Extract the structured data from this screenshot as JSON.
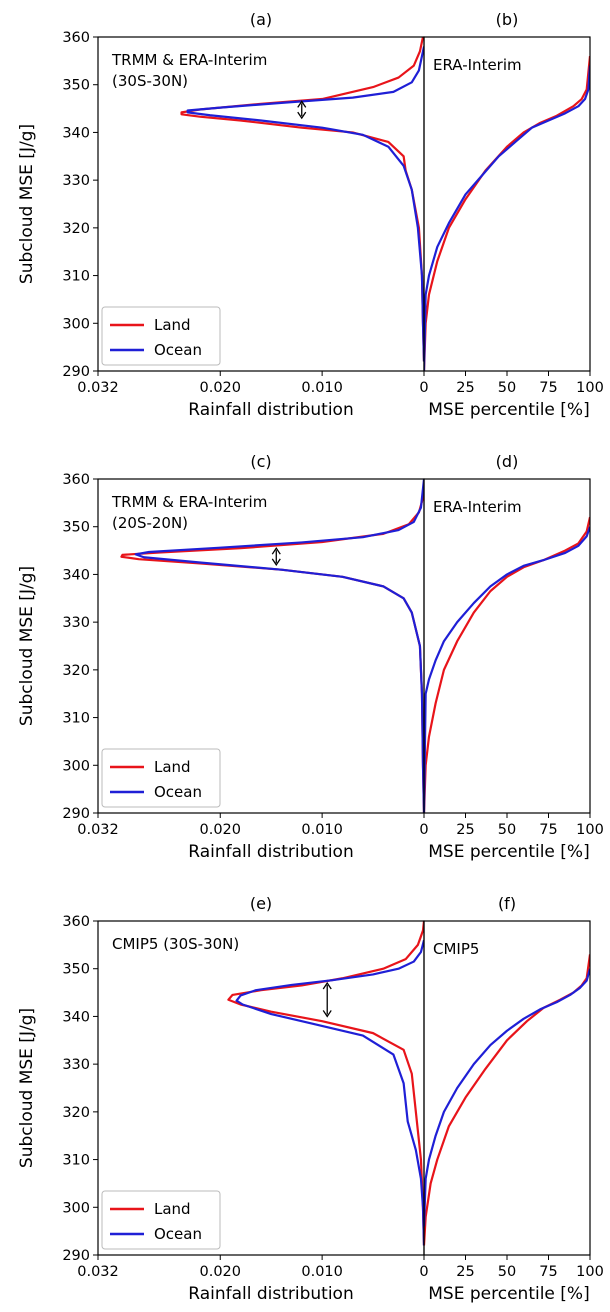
{
  "figure": {
    "rows": [
      {
        "left_panel_letter": "(a)",
        "right_panel_letter": "(b)",
        "left_annotation": [
          "TRMM & ERA-Interim",
          "(30S-30N)"
        ],
        "right_annotation": "ERA-Interim",
        "show_xticks_left": true
      },
      {
        "left_panel_letter": "(c)",
        "right_panel_letter": "(d)",
        "left_annotation": [
          "TRMM & ERA-Interim",
          "(20S-20N)"
        ],
        "right_annotation": "ERA-Interim"
      },
      {
        "left_panel_letter": "(e)",
        "right_panel_letter": "(f)",
        "left_annotation": [
          "CMIP5 (30S-30N)"
        ],
        "right_annotation": "CMIP5"
      }
    ],
    "left_xlabel": "Rainfall distribution",
    "right_xlabel": "MSE percentile [%]",
    "ylabel": "Subcloud MSE [J/g]",
    "left_xticks": [
      "0.032",
      "0.020",
      "0.010",
      "0"
    ],
    "right_xticks": [
      "0",
      "25",
      "50",
      "75",
      "100"
    ],
    "yticks": [
      "290",
      "300",
      "310",
      "320",
      "330",
      "340",
      "350",
      "360"
    ],
    "legend": [
      "Land",
      "Ocean"
    ],
    "colors": {
      "land": "#e8141a",
      "ocean": "#1f1fd6",
      "axis": "#000000"
    }
  },
  "chart_data": [
    {
      "panel": "(a)",
      "type": "line",
      "title": "",
      "xlabel": "Rainfall distribution",
      "ylabel": "Subcloud MSE [J/g]",
      "xlim": [
        0.032,
        0
      ],
      "ylim": [
        290,
        360
      ],
      "legend_position": "lower-left",
      "series": [
        {
          "name": "Land",
          "points": [
            [
              0,
              292
            ],
            [
              0.0001,
              300
            ],
            [
              0.0002,
              310
            ],
            [
              0.0005,
              320
            ],
            [
              0.0012,
              328
            ],
            [
              0.0018,
              332
            ],
            [
              0.002,
              335
            ],
            [
              0.0035,
              338
            ],
            [
              0.007,
              340
            ],
            [
              0.012,
              341
            ],
            [
              0.018,
              342.5
            ],
            [
              0.022,
              343.3
            ],
            [
              0.0238,
              343.8
            ],
            [
              0.0238,
              344.2
            ],
            [
              0.022,
              344.8
            ],
            [
              0.016,
              346
            ],
            [
              0.01,
              347
            ],
            [
              0.005,
              349.5
            ],
            [
              0.0025,
              351.5
            ],
            [
              0.001,
              354
            ],
            [
              0.0004,
              357
            ],
            [
              0.0001,
              360
            ]
          ]
        },
        {
          "name": "Ocean",
          "points": [
            [
              0,
              292
            ],
            [
              0.0001,
              300
            ],
            [
              0.0002,
              310
            ],
            [
              0.0006,
              320
            ],
            [
              0.0012,
              328
            ],
            [
              0.002,
              333
            ],
            [
              0.0035,
              337
            ],
            [
              0.006,
              339.5
            ],
            [
              0.01,
              341
            ],
            [
              0.016,
              342.5
            ],
            [
              0.021,
              343.6
            ],
            [
              0.0232,
              344.2
            ],
            [
              0.0232,
              344.6
            ],
            [
              0.02,
              345.2
            ],
            [
              0.014,
              346.2
            ],
            [
              0.007,
              347.3
            ],
            [
              0.003,
              348.5
            ],
            [
              0.0012,
              350.5
            ],
            [
              0.0005,
              353
            ],
            [
              0.0002,
              356
            ],
            [
              0,
              358
            ]
          ]
        }
      ],
      "annotation": "double-headed arrow between peaks at x 0.012, y 343–346.5"
    },
    {
      "panel": "(b)",
      "type": "line",
      "xlabel": "MSE percentile [%]",
      "xlim": [
        0,
        100
      ],
      "ylim": [
        290,
        360
      ],
      "series": [
        {
          "name": "Land",
          "points": [
            [
              0,
              290
            ],
            [
              1,
              300
            ],
            [
              3,
              306
            ],
            [
              8,
              313
            ],
            [
              15,
              320
            ],
            [
              25,
              326
            ],
            [
              37,
              332
            ],
            [
              50,
              337
            ],
            [
              60,
              340
            ],
            [
              70,
              342
            ],
            [
              80,
              343.5
            ],
            [
              90,
              345.5
            ],
            [
              95,
              347
            ],
            [
              98,
              349
            ],
            [
              100,
              356
            ]
          ]
        },
        {
          "name": "Ocean",
          "points": [
            [
              0,
              290
            ],
            [
              1,
              306
            ],
            [
              3,
              310
            ],
            [
              8,
              316
            ],
            [
              15,
              321
            ],
            [
              25,
              327
            ],
            [
              35,
              331
            ],
            [
              45,
              335
            ],
            [
              55,
              338
            ],
            [
              65,
              341
            ],
            [
              75,
              342.5
            ],
            [
              85,
              344
            ],
            [
              93,
              345.5
            ],
            [
              97,
              347
            ],
            [
              99,
              349
            ],
            [
              100,
              354
            ]
          ]
        }
      ]
    },
    {
      "panel": "(c)",
      "type": "line",
      "xlabel": "Rainfall distribution",
      "ylabel": "Subcloud MSE [J/g]",
      "xlim": [
        0.032,
        0
      ],
      "ylim": [
        290,
        360
      ],
      "legend_position": "lower-left",
      "series": [
        {
          "name": "Land",
          "points": [
            [
              0,
              290
            ],
            [
              0.0001,
              300
            ],
            [
              0.0002,
              315
            ],
            [
              0.0004,
              325
            ],
            [
              0.0012,
              332
            ],
            [
              0.002,
              335
            ],
            [
              0.004,
              337.5
            ],
            [
              0.008,
              339.5
            ],
            [
              0.014,
              341
            ],
            [
              0.022,
              342.3
            ],
            [
              0.028,
              343.2
            ],
            [
              0.0297,
              343.7
            ],
            [
              0.0296,
              344.1
            ],
            [
              0.026,
              344.6
            ],
            [
              0.018,
              345.5
            ],
            [
              0.01,
              346.8
            ],
            [
              0.004,
              348.5
            ],
            [
              0.0015,
              350.5
            ],
            [
              0.0005,
              353
            ],
            [
              0.0001,
              356
            ],
            [
              0,
              358
            ]
          ]
        },
        {
          "name": "Ocean",
          "points": [
            [
              0,
              290
            ],
            [
              0.0001,
              300
            ],
            [
              0.0002,
              315
            ],
            [
              0.0004,
              325
            ],
            [
              0.0012,
              332
            ],
            [
              0.002,
              335
            ],
            [
              0.004,
              337.5
            ],
            [
              0.008,
              339.5
            ],
            [
              0.014,
              341
            ],
            [
              0.022,
              342.5
            ],
            [
              0.0275,
              343.6
            ],
            [
              0.0283,
              344.2
            ],
            [
              0.027,
              344.7
            ],
            [
              0.02,
              345.6
            ],
            [
              0.012,
              346.7
            ],
            [
              0.006,
              347.8
            ],
            [
              0.0025,
              349.3
            ],
            [
              0.001,
              351
            ],
            [
              0.0003,
              354
            ],
            [
              0,
              360
            ]
          ]
        }
      ],
      "annotation": "double-headed arrow between peaks at x 0.0145, y 342–345.5"
    },
    {
      "panel": "(d)",
      "type": "line",
      "xlabel": "MSE percentile [%]",
      "xlim": [
        0,
        100
      ],
      "ylim": [
        290,
        360
      ],
      "series": [
        {
          "name": "Land",
          "points": [
            [
              0,
              290
            ],
            [
              1,
              300
            ],
            [
              3,
              306
            ],
            [
              7,
              313
            ],
            [
              12,
              320
            ],
            [
              20,
              326
            ],
            [
              30,
              332
            ],
            [
              40,
              336.5
            ],
            [
              50,
              339.5
            ],
            [
              60,
              341.5
            ],
            [
              72,
              343
            ],
            [
              85,
              345
            ],
            [
              93,
              346.5
            ],
            [
              98,
              349
            ],
            [
              100,
              352
            ]
          ]
        },
        {
          "name": "Ocean",
          "points": [
            [
              0,
              290
            ],
            [
              1,
              315
            ],
            [
              3,
              318
            ],
            [
              7,
              322
            ],
            [
              12,
              326
            ],
            [
              20,
              330
            ],
            [
              30,
              334
            ],
            [
              40,
              337.5
            ],
            [
              50,
              340
            ],
            [
              60,
              341.8
            ],
            [
              72,
              343
            ],
            [
              85,
              344.5
            ],
            [
              93,
              346
            ],
            [
              98,
              348
            ],
            [
              100,
              350
            ]
          ]
        }
      ]
    },
    {
      "panel": "(e)",
      "type": "line",
      "xlabel": "Rainfall distribution",
      "ylabel": "Subcloud MSE [J/g]",
      "xlim": [
        0.032,
        0
      ],
      "ylim": [
        290,
        360
      ],
      "legend_position": "lower-left",
      "series": [
        {
          "name": "Land",
          "points": [
            [
              0,
              292
            ],
            [
              0.0001,
              300
            ],
            [
              0.0003,
              310
            ],
            [
              0.0008,
              320
            ],
            [
              0.0012,
              328
            ],
            [
              0.002,
              333
            ],
            [
              0.005,
              336.5
            ],
            [
              0.01,
              339
            ],
            [
              0.015,
              341
            ],
            [
              0.018,
              342.5
            ],
            [
              0.0192,
              343.5
            ],
            [
              0.0188,
              344.5
            ],
            [
              0.016,
              345.5
            ],
            [
              0.012,
              346.5
            ],
            [
              0.008,
              348
            ],
            [
              0.004,
              350
            ],
            [
              0.0018,
              352
            ],
            [
              0.0006,
              355
            ],
            [
              0.0001,
              358
            ],
            [
              0,
              360
            ]
          ]
        },
        {
          "name": "Ocean",
          "points": [
            [
              0,
              292
            ],
            [
              0.0001,
              300
            ],
            [
              0.0003,
              306
            ],
            [
              0.0008,
              312
            ],
            [
              0.0016,
              318
            ],
            [
              0.002,
              326
            ],
            [
              0.003,
              332
            ],
            [
              0.006,
              336
            ],
            [
              0.011,
              338.5
            ],
            [
              0.015,
              340.5
            ],
            [
              0.0178,
              342.5
            ],
            [
              0.0184,
              343.3
            ],
            [
              0.018,
              344.4
            ],
            [
              0.0165,
              345.5
            ],
            [
              0.013,
              346.6
            ],
            [
              0.009,
              347.6
            ],
            [
              0.005,
              348.8
            ],
            [
              0.0025,
              350
            ],
            [
              0.001,
              351.5
            ],
            [
              0.0003,
              353.5
            ],
            [
              0,
              356
            ]
          ]
        }
      ],
      "annotation": "double-headed arrow between peaks at x 0.0095, y 340–347"
    },
    {
      "panel": "(f)",
      "type": "line",
      "xlabel": "MSE percentile [%]",
      "xlim": [
        0,
        100
      ],
      "ylim": [
        290,
        360
      ],
      "series": [
        {
          "name": "Land",
          "points": [
            [
              0,
              292
            ],
            [
              1,
              298
            ],
            [
              4,
              305
            ],
            [
              8,
              310
            ],
            [
              15,
              317
            ],
            [
              25,
              323
            ],
            [
              37,
              329
            ],
            [
              50,
              335
            ],
            [
              62,
              339
            ],
            [
              72,
              341.8
            ],
            [
              82,
              343.5
            ],
            [
              90,
              345
            ],
            [
              95,
              346.5
            ],
            [
              98,
              348
            ],
            [
              100,
              353
            ]
          ]
        },
        {
          "name": "Ocean",
          "points": [
            [
              0,
              296
            ],
            [
              1,
              306
            ],
            [
              3,
              310
            ],
            [
              7,
              315
            ],
            [
              12,
              320
            ],
            [
              20,
              325
            ],
            [
              30,
              330
            ],
            [
              40,
              334
            ],
            [
              50,
              337
            ],
            [
              60,
              339.5
            ],
            [
              70,
              341.5
            ],
            [
              80,
              343
            ],
            [
              88,
              344.5
            ],
            [
              94,
              346
            ],
            [
              98,
              347.5
            ],
            [
              100,
              350
            ]
          ]
        }
      ]
    }
  ]
}
